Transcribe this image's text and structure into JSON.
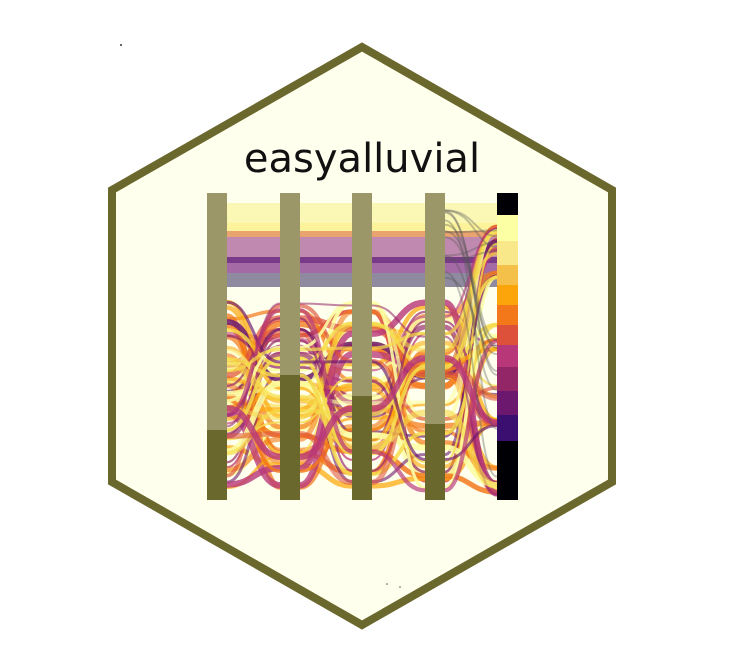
{
  "logo": {
    "title": "easyalluvial",
    "colors": {
      "background": "#ffffee",
      "border": "#6b682e",
      "stratum_light": "#9c9768",
      "stratum_dark": "#6b682e"
    },
    "palette": [
      "#fcffa4",
      "#f5db4b",
      "#fcaa0f",
      "#f37819",
      "#dd513a",
      "#b73779",
      "#932667",
      "#6b186e",
      "#3b0f70",
      "#000004"
    ]
  }
}
